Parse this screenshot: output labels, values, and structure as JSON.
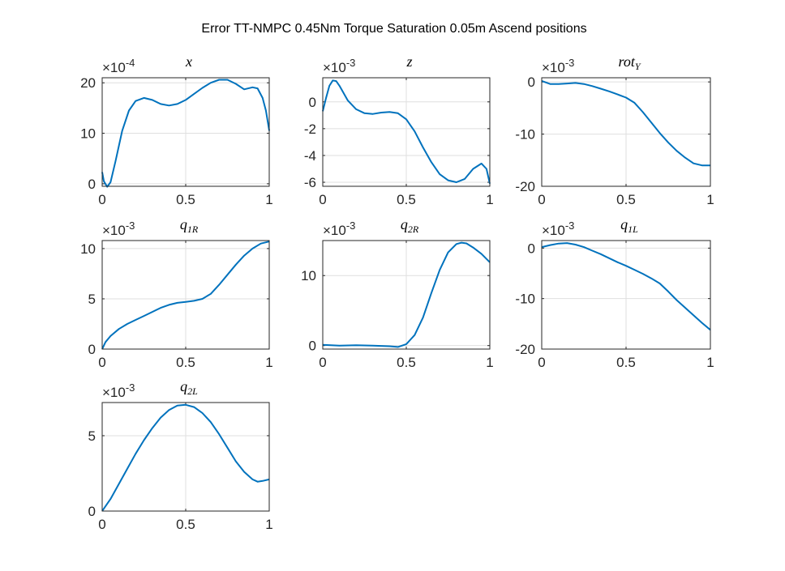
{
  "figure": {
    "title": "Error TT-NMPC 0.45Nm Torque Saturation 0.05m Ascend positions",
    "line_color": "#0072BD"
  },
  "chart_data": [
    {
      "type": "line",
      "title": "x",
      "title_sub": "",
      "exponent": "-4",
      "xlim": [
        0,
        1
      ],
      "ylim": [
        -0.5,
        21
      ],
      "xticks": [
        0,
        0.5,
        1
      ],
      "xtick_labels": [
        "0",
        "0.5",
        "1"
      ],
      "yticks": [
        0,
        10,
        20
      ],
      "ytick_labels": [
        "0",
        "10",
        "20"
      ],
      "grid": true,
      "x": [
        0,
        0.01,
        0.03,
        0.05,
        0.08,
        0.12,
        0.16,
        0.2,
        0.25,
        0.3,
        0.35,
        0.4,
        0.45,
        0.5,
        0.55,
        0.6,
        0.65,
        0.7,
        0.75,
        0.8,
        0.85,
        0.9,
        0.93,
        0.96,
        0.98,
        1.0
      ],
      "y": [
        2.3,
        0.5,
        -0.6,
        0.3,
        4.5,
        10.5,
        14.5,
        16.4,
        17.0,
        16.6,
        15.8,
        15.5,
        15.8,
        16.6,
        17.8,
        19.0,
        20.0,
        20.6,
        20.6,
        19.8,
        18.7,
        19.1,
        18.9,
        17.0,
        14.5,
        10.5
      ]
    },
    {
      "type": "line",
      "title": "z",
      "title_sub": "",
      "exponent": "-3",
      "xlim": [
        0,
        1
      ],
      "ylim": [
        -6.3,
        1.8
      ],
      "xticks": [
        0,
        0.5,
        1
      ],
      "xtick_labels": [
        "0",
        "0.5",
        "1"
      ],
      "yticks": [
        -6,
        -4,
        -2,
        0
      ],
      "ytick_labels": [
        "-6",
        "-4",
        "-2",
        "0"
      ],
      "grid": true,
      "x": [
        0,
        0.02,
        0.04,
        0.06,
        0.08,
        0.1,
        0.15,
        0.2,
        0.25,
        0.3,
        0.35,
        0.4,
        0.45,
        0.5,
        0.55,
        0.6,
        0.65,
        0.7,
        0.75,
        0.8,
        0.85,
        0.9,
        0.95,
        0.98,
        1.0
      ],
      "y": [
        -0.7,
        0.3,
        1.2,
        1.6,
        1.55,
        1.2,
        0.1,
        -0.55,
        -0.85,
        -0.9,
        -0.8,
        -0.75,
        -0.85,
        -1.3,
        -2.2,
        -3.4,
        -4.5,
        -5.4,
        -5.85,
        -6.0,
        -5.75,
        -5.0,
        -4.6,
        -5.0,
        -6.1
      ]
    },
    {
      "type": "line",
      "title": "rot",
      "title_sub": "Y",
      "exponent": "-3",
      "xlim": [
        0,
        1
      ],
      "ylim": [
        -20,
        0.8
      ],
      "xticks": [
        0,
        0.5,
        1
      ],
      "xtick_labels": [
        "0",
        "0.5",
        "1"
      ],
      "yticks": [
        -20,
        -10,
        0
      ],
      "ytick_labels": [
        "-20",
        "-10",
        "0"
      ],
      "grid": true,
      "x": [
        0,
        0.05,
        0.1,
        0.15,
        0.2,
        0.25,
        0.3,
        0.35,
        0.4,
        0.45,
        0.5,
        0.55,
        0.6,
        0.65,
        0.7,
        0.75,
        0.8,
        0.85,
        0.9,
        0.95,
        1.0
      ],
      "y": [
        0.2,
        -0.4,
        -0.4,
        -0.3,
        -0.2,
        -0.4,
        -0.8,
        -1.3,
        -1.8,
        -2.4,
        -3.0,
        -4.0,
        -5.8,
        -7.8,
        -9.8,
        -11.6,
        -13.2,
        -14.5,
        -15.6,
        -16.0,
        -16.0
      ]
    },
    {
      "type": "line",
      "title": "q",
      "title_sub": "1R",
      "exponent": "-3",
      "xlim": [
        0,
        1
      ],
      "ylim": [
        0,
        10.8
      ],
      "xticks": [
        0,
        0.5,
        1
      ],
      "xtick_labels": [
        "0",
        "0.5",
        "1"
      ],
      "yticks": [
        0,
        5,
        10
      ],
      "ytick_labels": [
        "0",
        "5",
        "10"
      ],
      "grid": true,
      "x": [
        0,
        0.02,
        0.05,
        0.1,
        0.15,
        0.2,
        0.25,
        0.3,
        0.35,
        0.4,
        0.45,
        0.5,
        0.55,
        0.6,
        0.65,
        0.7,
        0.75,
        0.8,
        0.85,
        0.9,
        0.95,
        1.0
      ],
      "y": [
        0,
        0.7,
        1.3,
        2.0,
        2.5,
        2.9,
        3.3,
        3.7,
        4.1,
        4.4,
        4.6,
        4.7,
        4.8,
        5.0,
        5.5,
        6.4,
        7.4,
        8.4,
        9.3,
        10.0,
        10.5,
        10.7
      ]
    },
    {
      "type": "line",
      "title": "q",
      "title_sub": "2R",
      "exponent": "-3",
      "xlim": [
        0,
        1
      ],
      "ylim": [
        -0.5,
        15
      ],
      "xticks": [
        0,
        0.5,
        1
      ],
      "xtick_labels": [
        "0",
        "0.5",
        "1"
      ],
      "yticks": [
        0,
        10
      ],
      "ytick_labels": [
        "0",
        "10"
      ],
      "grid": true,
      "x": [
        0,
        0.1,
        0.2,
        0.3,
        0.4,
        0.45,
        0.5,
        0.55,
        0.6,
        0.65,
        0.7,
        0.75,
        0.8,
        0.83,
        0.86,
        0.9,
        0.95,
        1.0
      ],
      "y": [
        0.1,
        0.0,
        0.05,
        0.0,
        -0.1,
        -0.2,
        0.2,
        1.5,
        4.0,
        7.5,
        10.8,
        13.3,
        14.5,
        14.7,
        14.6,
        14.0,
        13.1,
        11.9
      ]
    },
    {
      "type": "line",
      "title": "q",
      "title_sub": "1L",
      "exponent": "-3",
      "xlim": [
        0,
        1
      ],
      "ylim": [
        -20,
        1.5
      ],
      "xticks": [
        0,
        0.5,
        1
      ],
      "xtick_labels": [
        "0",
        "0.5",
        "1"
      ],
      "yticks": [
        -20,
        -10,
        0
      ],
      "ytick_labels": [
        "-20",
        "-10",
        "0"
      ],
      "grid": true,
      "x": [
        0,
        0.05,
        0.1,
        0.15,
        0.2,
        0.25,
        0.3,
        0.35,
        0.4,
        0.45,
        0.5,
        0.55,
        0.6,
        0.65,
        0.7,
        0.75,
        0.8,
        0.85,
        0.9,
        0.95,
        1.0
      ],
      "y": [
        0.2,
        0.6,
        0.9,
        1.0,
        0.7,
        0.2,
        -0.5,
        -1.2,
        -2.0,
        -2.8,
        -3.5,
        -4.3,
        -5.1,
        -6.0,
        -7.0,
        -8.6,
        -10.3,
        -11.8,
        -13.3,
        -14.8,
        -16.2
      ]
    },
    {
      "type": "line",
      "title": "q",
      "title_sub": "2L",
      "exponent": "-3",
      "xlim": [
        0,
        1
      ],
      "ylim": [
        0,
        7.2
      ],
      "xticks": [
        0,
        0.5,
        1
      ],
      "xtick_labels": [
        "0",
        "0.5",
        "1"
      ],
      "yticks": [
        0,
        5
      ],
      "ytick_labels": [
        "0",
        "5"
      ],
      "grid": true,
      "x": [
        0,
        0.05,
        0.1,
        0.15,
        0.2,
        0.25,
        0.3,
        0.35,
        0.4,
        0.45,
        0.5,
        0.55,
        0.6,
        0.65,
        0.7,
        0.75,
        0.8,
        0.85,
        0.9,
        0.93,
        0.96,
        1.0
      ],
      "y": [
        0,
        0.8,
        1.8,
        2.8,
        3.8,
        4.7,
        5.5,
        6.2,
        6.7,
        7.0,
        7.05,
        6.9,
        6.5,
        5.9,
        5.1,
        4.2,
        3.3,
        2.6,
        2.1,
        1.95,
        2.0,
        2.1
      ]
    }
  ]
}
